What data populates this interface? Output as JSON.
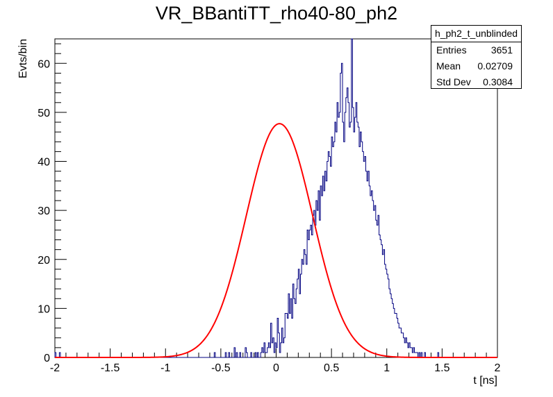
{
  "chart_data": {
    "type": "histogram",
    "title": "VR_BBantiTT_rho40-80_ph2",
    "xlabel": "t [ns]",
    "ylabel": "Evts/bin",
    "xlim": [
      -2,
      2
    ],
    "ylim": [
      0,
      65
    ],
    "x_ticks": [
      "-2",
      "-1.5",
      "-1",
      "-0.5",
      "0",
      "0.5",
      "1",
      "1.5",
      "2"
    ],
    "y_ticks": [
      "0",
      "10",
      "20",
      "30",
      "40",
      "50",
      "60"
    ],
    "grid": false,
    "bin_width": 0.01,
    "bin_start": -2.0,
    "hist_color": "#000080",
    "bin_counts": [
      1,
      0,
      0,
      0,
      1,
      0,
      0,
      0,
      0,
      0,
      0,
      0,
      0,
      0,
      0,
      0,
      0,
      0,
      0,
      0,
      0,
      0,
      0,
      0,
      0,
      0,
      0,
      0,
      0,
      0,
      0,
      0,
      0,
      0,
      0,
      0,
      0,
      0,
      0,
      0,
      0,
      0,
      0,
      0,
      0,
      0,
      0,
      0,
      0,
      0,
      0,
      0,
      0,
      0,
      0,
      0,
      0,
      0,
      0,
      0,
      0,
      0,
      0,
      0,
      0,
      0,
      0,
      0,
      0,
      0,
      0,
      0,
      0,
      0,
      0,
      0,
      0,
      0,
      0,
      0,
      0,
      0,
      0,
      0,
      0,
      0,
      0,
      0,
      0,
      0,
      0,
      0,
      0,
      0,
      0,
      0,
      0,
      0,
      0,
      0,
      0,
      0,
      0,
      0,
      0,
      0,
      0,
      0,
      0,
      0,
      0,
      0,
      0,
      0,
      0,
      0,
      0,
      0,
      0,
      0,
      0,
      0,
      0,
      0,
      0,
      0,
      0,
      0,
      0,
      0,
      0,
      0,
      0,
      0,
      0,
      0,
      0,
      0,
      0,
      0,
      0,
      0,
      0,
      0,
      1,
      0,
      0,
      0,
      0,
      0,
      0,
      0,
      0,
      0,
      1,
      0,
      0,
      1,
      0,
      0,
      0,
      0,
      2,
      0,
      1,
      0,
      0,
      1,
      0,
      0,
      0,
      0,
      2,
      1,
      0,
      0,
      0,
      1,
      0,
      0,
      0,
      1,
      0,
      1,
      0,
      0,
      1,
      2,
      1,
      3,
      1,
      1,
      2,
      3,
      2,
      7,
      3,
      4,
      1,
      3,
      2,
      8,
      5,
      1,
      3,
      6,
      3,
      4,
      9,
      9,
      8,
      13,
      9,
      12,
      8,
      15,
      12,
      11,
      14,
      16,
      18,
      13,
      17,
      20,
      19,
      22,
      21,
      19,
      26,
      24,
      26,
      27,
      25,
      29,
      30,
      27,
      32,
      30,
      34,
      28,
      35,
      33,
      37,
      34,
      38,
      36,
      40,
      42,
      41,
      39,
      45,
      43,
      44,
      48,
      46,
      52,
      49,
      50,
      58,
      60,
      48,
      44,
      50,
      53,
      55,
      52,
      47,
      48,
      65,
      51,
      46,
      49,
      52,
      48,
      47,
      43,
      46,
      44,
      42,
      40,
      41,
      38,
      36,
      38,
      35,
      33,
      34,
      32,
      30,
      31,
      28,
      27,
      29,
      25,
      24,
      23,
      21,
      22,
      19,
      18,
      17,
      16,
      14,
      13,
      12,
      11,
      10,
      9,
      9,
      8,
      7,
      6,
      6,
      5,
      5,
      4,
      3,
      4,
      3,
      2,
      3,
      2,
      2,
      1,
      2,
      1,
      1,
      1,
      0,
      1,
      0,
      1,
      0,
      0,
      1,
      0,
      0,
      0,
      0,
      0,
      0,
      0,
      0,
      0,
      0,
      0,
      1,
      0,
      0,
      0,
      0,
      0,
      0,
      0,
      0,
      0,
      0,
      0,
      0,
      0,
      0,
      0,
      0,
      0,
      0,
      0,
      0,
      0,
      0,
      0,
      0,
      0,
      0,
      0,
      0,
      0,
      0,
      0,
      0,
      0,
      0,
      0,
      0,
      0,
      0,
      0,
      0,
      0,
      0,
      0,
      0,
      0,
      0,
      0,
      0,
      0,
      0,
      0,
      0,
      0
    ],
    "fit": {
      "type": "gaussian",
      "color": "#ff0000",
      "amplitude": 47.7,
      "mean": 0.03,
      "sigma": 0.3
    }
  },
  "stats": {
    "name": "h_ph2_t_unblinded",
    "entries_label": "Entries",
    "entries_value": "3651",
    "mean_label": "Mean",
    "mean_value": "0.02709",
    "stddev_label": "Std Dev",
    "stddev_value": "0.3084"
  }
}
